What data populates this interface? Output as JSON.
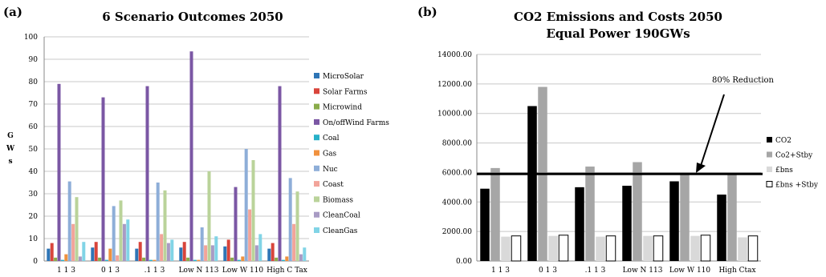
{
  "chart_data": [
    {
      "panel_label": "(a)",
      "type": "bar",
      "title": "6 Scenario Outcomes 2050",
      "ylabel": "G W s",
      "ylim": [
        0,
        100
      ],
      "yticks": [
        "0",
        "10",
        "20",
        "30",
        "40",
        "50",
        "60",
        "70",
        "80",
        "90",
        "100"
      ],
      "grid": true,
      "legend_position": "right",
      "categories": [
        "1 1 3",
        "0  1 3",
        ".1 1 3",
        "Low N 113",
        "Low W 110",
        "High C Tax"
      ],
      "series": [
        {
          "name": "MicroSolar",
          "color": "#2e75b6",
          "values": [
            5.5,
            6,
            5.5,
            6,
            6.5,
            5.5
          ]
        },
        {
          "name": "Solar Farms",
          "color": "#d9453b",
          "values": [
            8,
            8.5,
            8.5,
            8.5,
            9.5,
            8
          ]
        },
        {
          "name": "Microwind",
          "color": "#8aac4a",
          "values": [
            1.5,
            1.5,
            1.5,
            1.5,
            1.5,
            1.5
          ]
        },
        {
          "name": "On/offWind Farms",
          "color": "#7b57a4",
          "values": [
            79,
            73,
            78,
            93.5,
            33,
            78
          ]
        },
        {
          "name": "Coal",
          "color": "#28b1c8",
          "values": [
            0.5,
            0.5,
            0.5,
            0.5,
            0.5,
            0.5
          ]
        },
        {
          "name": "Gas",
          "color": "#f0913e",
          "values": [
            3,
            5.5,
            0.5,
            0.5,
            2,
            2
          ]
        },
        {
          "name": "Nuc",
          "color": "#8eaed8",
          "values": [
            35.5,
            24.5,
            35,
            15,
            50,
            37
          ]
        },
        {
          "name": "Coast",
          "color": "#f2a49a",
          "values": [
            16.5,
            2.5,
            12,
            7,
            23,
            16.5
          ]
        },
        {
          "name": "Biomass",
          "color": "#bad39a",
          "values": [
            28.5,
            27,
            31.5,
            40,
            45,
            31
          ]
        },
        {
          "name": "CleanCoal",
          "color": "#a89bc4",
          "values": [
            2,
            16.5,
            8,
            7,
            7,
            3
          ]
        },
        {
          "name": "CleanGas",
          "color": "#81d4e6",
          "values": [
            8.5,
            18.5,
            9.5,
            11,
            12,
            6
          ]
        }
      ]
    },
    {
      "panel_label": "(b)",
      "type": "bar",
      "title": "CO2 Emissions and Costs 2050",
      "subtitle": "Equal Power 190GWs",
      "ylim": [
        0,
        14000
      ],
      "yticks": [
        "0.00",
        "2000.00",
        "4000.00",
        "6000.00",
        "8000.00",
        "10000.00",
        "12000.00",
        "14000.00"
      ],
      "grid": true,
      "legend_position": "right",
      "categories": [
        "1 1 3",
        "0  1 3",
        ".1 1 3",
        "Low N 113",
        "Low W 110",
        "High Ctax"
      ],
      "series": [
        {
          "name": "CO2",
          "color": "#000000",
          "values": [
            4900,
            10500,
            5000,
            5100,
            5400,
            4500
          ]
        },
        {
          "name": "Co2+Stby",
          "color": "#a6a6a6",
          "values": [
            6300,
            11800,
            6400,
            6700,
            5900,
            5900
          ]
        },
        {
          "name": "£bns",
          "color": "#d9d9d9",
          "values": [
            1650,
            1700,
            1650,
            1700,
            1700,
            1600
          ]
        },
        {
          "name": "£bns +Stby",
          "color": "#ffffff",
          "values": [
            1700,
            1750,
            1700,
            1700,
            1750,
            1700
          ]
        }
      ],
      "reference_line": {
        "value": 5900,
        "label": "80% Reduction"
      }
    }
  ]
}
